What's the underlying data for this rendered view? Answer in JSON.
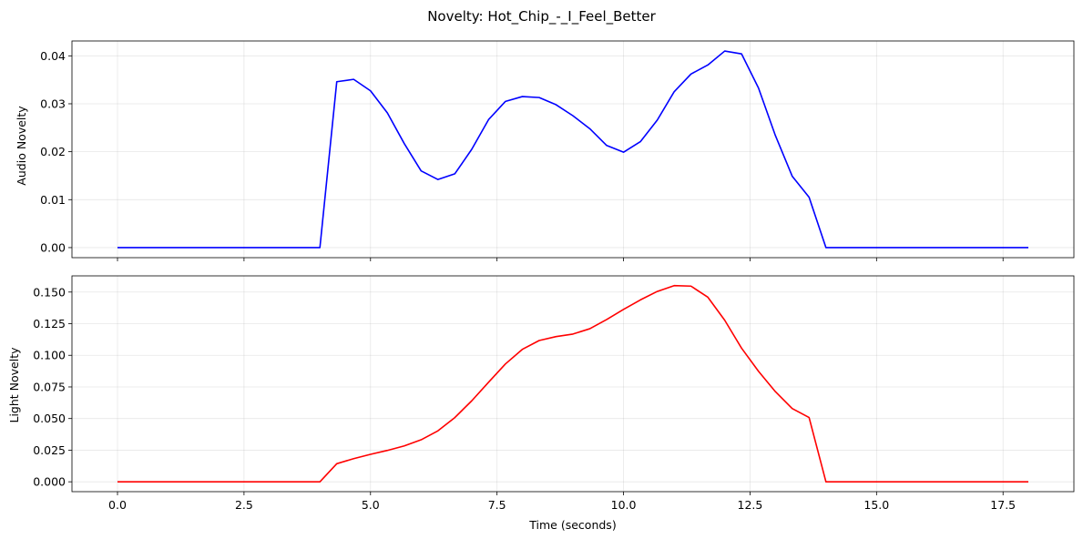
{
  "title": "Novelty: Hot_Chip_-_I_Feel_Better",
  "chart_data": [
    {
      "type": "line",
      "ylabel": "Audio Novelty",
      "xlabel": "",
      "color": "#0000ff",
      "xlim": [
        -0.9,
        18.9
      ],
      "ylim": [
        -0.0021,
        0.0431
      ],
      "xticks": [
        0.0,
        2.5,
        5.0,
        7.5,
        10.0,
        12.5,
        15.0,
        17.5
      ],
      "xtick_labels": [],
      "yticks": [
        0.0,
        0.01,
        0.02,
        0.03,
        0.04
      ],
      "ytick_labels": [
        "0.00",
        "0.01",
        "0.02",
        "0.03",
        "0.04"
      ],
      "grid": true,
      "x": [
        0.0,
        0.333,
        0.667,
        1.0,
        1.333,
        1.667,
        2.0,
        2.333,
        2.667,
        3.0,
        3.333,
        3.667,
        4.0,
        4.333,
        4.667,
        5.0,
        5.333,
        5.667,
        6.0,
        6.333,
        6.667,
        7.0,
        7.333,
        7.667,
        8.0,
        8.333,
        8.667,
        9.0,
        9.333,
        9.667,
        10.0,
        10.333,
        10.667,
        11.0,
        11.333,
        11.667,
        12.0,
        12.333,
        12.667,
        13.0,
        13.333,
        13.667,
        14.0,
        14.333,
        14.667,
        15.0,
        15.333,
        15.667,
        16.0,
        16.333,
        16.667,
        17.0,
        17.333,
        17.667,
        18.0
      ],
      "y": [
        0,
        0,
        0,
        0,
        0,
        0,
        0,
        0,
        0,
        0,
        0,
        0,
        0,
        0.0346,
        0.0351,
        0.0327,
        0.0281,
        0.0217,
        0.016,
        0.0142,
        0.0154,
        0.0205,
        0.0267,
        0.0305,
        0.0315,
        0.0313,
        0.0298,
        0.0275,
        0.0248,
        0.0213,
        0.0199,
        0.0221,
        0.0266,
        0.0325,
        0.0362,
        0.0381,
        0.041,
        0.0404,
        0.0333,
        0.0234,
        0.0149,
        0.0105,
        0,
        0,
        0,
        0,
        0,
        0,
        0,
        0,
        0,
        0,
        0,
        0,
        0
      ]
    },
    {
      "type": "line",
      "ylabel": "Light Novelty",
      "xlabel": "Time (seconds)",
      "color": "#ff0000",
      "xlim": [
        -0.9,
        18.9
      ],
      "ylim": [
        -0.0078,
        0.1628
      ],
      "xticks": [
        0.0,
        2.5,
        5.0,
        7.5,
        10.0,
        12.5,
        15.0,
        17.5
      ],
      "xtick_labels": [
        "0.0",
        "2.5",
        "5.0",
        "7.5",
        "10.0",
        "12.5",
        "15.0",
        "17.5"
      ],
      "yticks": [
        0.0,
        0.025,
        0.05,
        0.075,
        0.1,
        0.125,
        0.15
      ],
      "ytick_labels": [
        "0.000",
        "0.025",
        "0.050",
        "0.075",
        "0.100",
        "0.125",
        "0.150"
      ],
      "grid": true,
      "x": [
        0.0,
        0.333,
        0.667,
        1.0,
        1.333,
        1.667,
        2.0,
        2.333,
        2.667,
        3.0,
        3.333,
        3.667,
        4.0,
        4.333,
        4.667,
        5.0,
        5.333,
        5.667,
        6.0,
        6.333,
        6.667,
        7.0,
        7.333,
        7.667,
        8.0,
        8.333,
        8.667,
        9.0,
        9.333,
        9.667,
        10.0,
        10.333,
        10.667,
        11.0,
        11.333,
        11.667,
        12.0,
        12.333,
        12.667,
        13.0,
        13.333,
        13.667,
        14.0,
        14.333,
        14.667,
        15.0,
        15.333,
        15.667,
        16.0,
        16.333,
        16.667,
        17.0,
        17.333,
        17.667,
        18.0
      ],
      "y": [
        0,
        0,
        0,
        0,
        0,
        0,
        0,
        0,
        0,
        0,
        0,
        0,
        0,
        0.0143,
        0.0183,
        0.0217,
        0.0248,
        0.0284,
        0.0332,
        0.0403,
        0.0508,
        0.064,
        0.0787,
        0.0932,
        0.1047,
        0.1117,
        0.1148,
        0.1168,
        0.121,
        0.1283,
        0.1363,
        0.1438,
        0.1505,
        0.1551,
        0.1547,
        0.1459,
        0.1277,
        0.1056,
        0.0874,
        0.0713,
        0.0579,
        0.0508,
        0,
        0,
        0,
        0,
        0,
        0,
        0,
        0,
        0,
        0,
        0,
        0,
        0
      ]
    }
  ]
}
